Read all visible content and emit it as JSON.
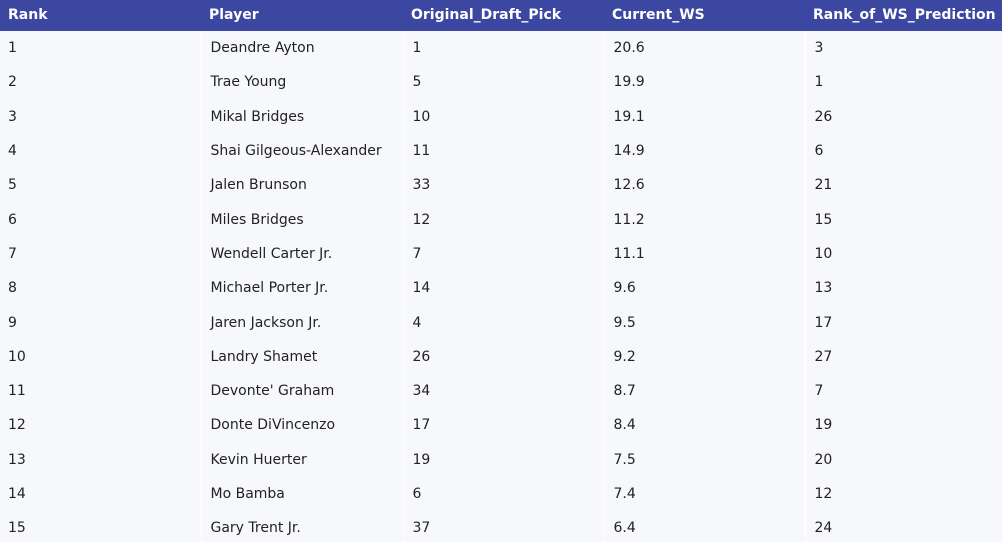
{
  "table": {
    "columns": [
      "Rank",
      "Player",
      "Original_Draft_Pick",
      "Current_WS",
      "Rank_of_WS_Prediction"
    ],
    "rows": [
      [
        "1",
        "Deandre Ayton",
        "1",
        "20.6",
        "3"
      ],
      [
        "2",
        "Trae Young",
        "5",
        "19.9",
        "1"
      ],
      [
        "3",
        "Mikal Bridges",
        "10",
        "19.1",
        "26"
      ],
      [
        "4",
        "Shai Gilgeous-Alexander",
        "11",
        "14.9",
        "6"
      ],
      [
        "5",
        "Jalen Brunson",
        "33",
        "12.6",
        "21"
      ],
      [
        "6",
        "Miles Bridges",
        "12",
        "11.2",
        "15"
      ],
      [
        "7",
        "Wendell Carter Jr.",
        "7",
        "11.1",
        "10"
      ],
      [
        "8",
        "Michael Porter Jr.",
        "14",
        "9.6",
        "13"
      ],
      [
        "9",
        "Jaren Jackson Jr.",
        "4",
        "9.5",
        "17"
      ],
      [
        "10",
        "Landry Shamet",
        "26",
        "9.2",
        "27"
      ],
      [
        "11",
        "Devonte' Graham",
        "34",
        "8.7",
        "7"
      ],
      [
        "12",
        "Donte DiVincenzo",
        "17",
        "8.4",
        "19"
      ],
      [
        "13",
        "Kevin Huerter",
        "19",
        "7.5",
        "20"
      ],
      [
        "14",
        "Mo Bamba",
        "6",
        "7.4",
        "12"
      ],
      [
        "15",
        "Gary Trent Jr.",
        "37",
        "6.4",
        "24"
      ]
    ]
  },
  "colors": {
    "header_background": "#3b47a1",
    "header_text": "#ffffff",
    "row_background": "#f7f8fb",
    "cell_text": "#222222"
  }
}
